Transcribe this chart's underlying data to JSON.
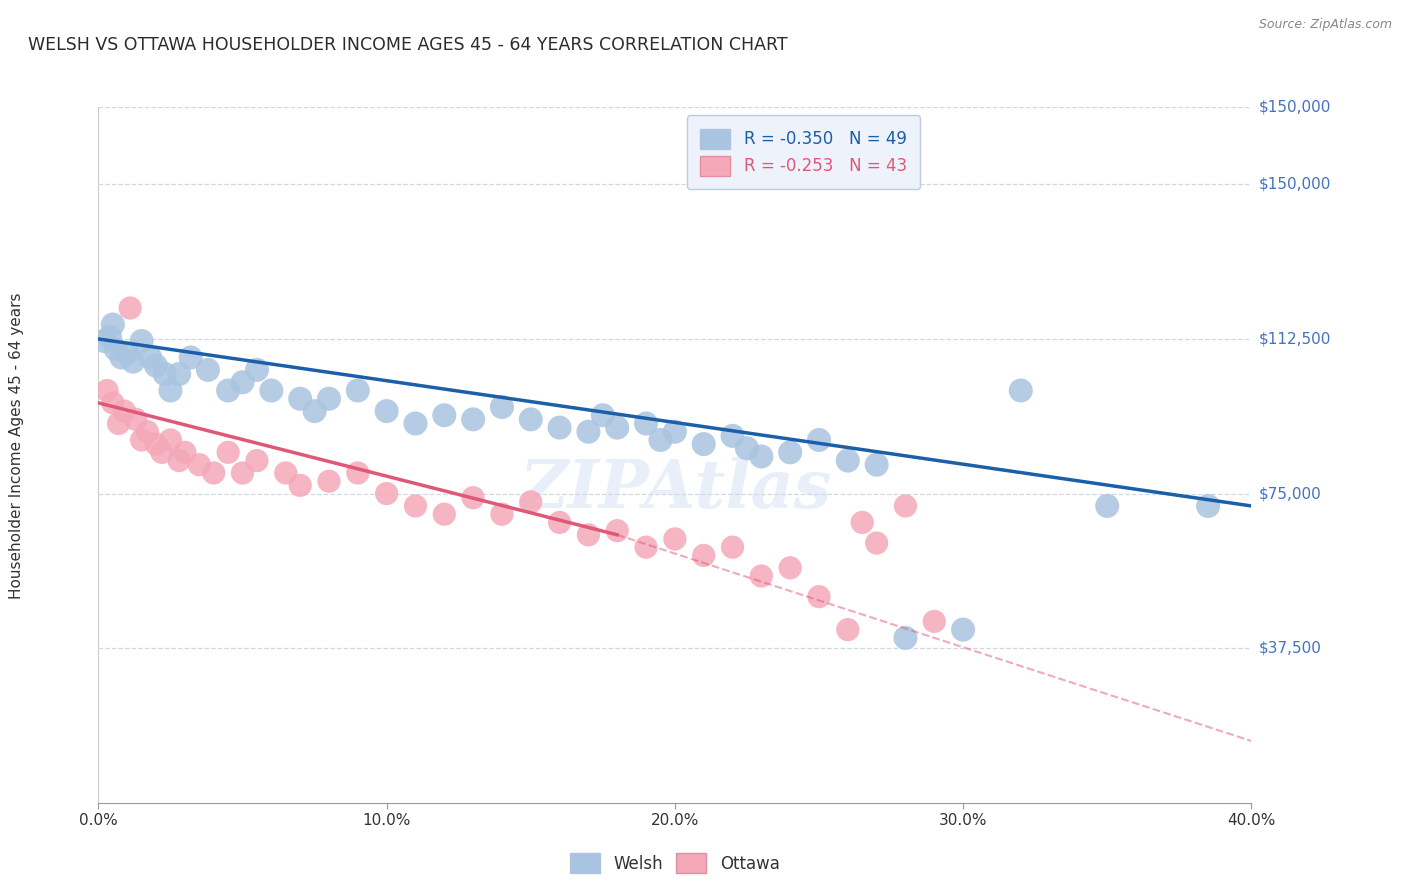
{
  "title": "WELSH VS OTTAWA HOUSEHOLDER INCOME AGES 45 - 64 YEARS CORRELATION CHART",
  "source": "Source: ZipAtlas.com",
  "xlabel_tick_vals": [
    0.0,
    10.0,
    20.0,
    30.0,
    40.0
  ],
  "ylabel_tick_vals": [
    37500,
    75000,
    112500,
    150000
  ],
  "ylabel_tick_labels": [
    "$37,500",
    "$75,000",
    "$112,500",
    "$150,000"
  ],
  "xlim": [
    0.0,
    40.0
  ],
  "ylim": [
    0,
    168750
  ],
  "welsh_R": -0.35,
  "welsh_N": 49,
  "ottawa_R": -0.253,
  "ottawa_N": 43,
  "welsh_color": "#a8c4e0",
  "ottawa_color": "#f4a8b8",
  "welsh_line_color": "#1a5fa8",
  "ottawa_line_color": "#e05878",
  "welsh_scatter_x": [
    0.2,
    0.4,
    0.5,
    0.6,
    0.8,
    1.0,
    1.2,
    1.5,
    1.8,
    2.0,
    2.3,
    2.5,
    2.8,
    3.2,
    3.8,
    4.5,
    5.0,
    5.5,
    6.0,
    7.0,
    7.5,
    8.0,
    9.0,
    10.0,
    11.0,
    12.0,
    13.0,
    14.0,
    15.0,
    16.0,
    17.0,
    17.5,
    18.0,
    19.0,
    19.5,
    20.0,
    21.0,
    22.0,
    22.5,
    23.0,
    24.0,
    25.0,
    26.0,
    27.0,
    28.0,
    30.0,
    32.0,
    35.0,
    38.5
  ],
  "welsh_scatter_y": [
    112000,
    113000,
    116000,
    110000,
    108000,
    109000,
    107000,
    112000,
    108000,
    106000,
    104000,
    100000,
    104000,
    108000,
    105000,
    100000,
    102000,
    105000,
    100000,
    98000,
    95000,
    98000,
    100000,
    95000,
    92000,
    94000,
    93000,
    96000,
    93000,
    91000,
    90000,
    94000,
    91000,
    92000,
    88000,
    90000,
    87000,
    89000,
    86000,
    84000,
    85000,
    88000,
    83000,
    82000,
    40000,
    42000,
    100000,
    72000,
    72000
  ],
  "ottawa_scatter_x": [
    0.3,
    0.5,
    0.7,
    0.9,
    1.1,
    1.3,
    1.5,
    1.7,
    2.0,
    2.2,
    2.5,
    2.8,
    3.0,
    3.5,
    4.0,
    4.5,
    5.0,
    5.5,
    6.5,
    7.0,
    8.0,
    9.0,
    10.0,
    11.0,
    12.0,
    13.0,
    14.0,
    15.0,
    16.0,
    17.0,
    18.0,
    19.0,
    20.0,
    21.0,
    22.0,
    23.0,
    24.0,
    25.0,
    26.0,
    26.5,
    27.0,
    28.0,
    29.0
  ],
  "ottawa_scatter_y": [
    100000,
    97000,
    92000,
    95000,
    120000,
    93000,
    88000,
    90000,
    87000,
    85000,
    88000,
    83000,
    85000,
    82000,
    80000,
    85000,
    80000,
    83000,
    80000,
    77000,
    78000,
    80000,
    75000,
    72000,
    70000,
    74000,
    70000,
    73000,
    68000,
    65000,
    66000,
    62000,
    64000,
    60000,
    62000,
    55000,
    57000,
    50000,
    42000,
    68000,
    63000,
    72000,
    44000
  ],
  "watermark": "ZIPAtlas",
  "background_color": "#ffffff",
  "grid_color": "#d0d8e8",
  "title_color": "#2c2c2c",
  "axis_label_color": "#4472c4",
  "legend_box_color": "#eef2fa"
}
